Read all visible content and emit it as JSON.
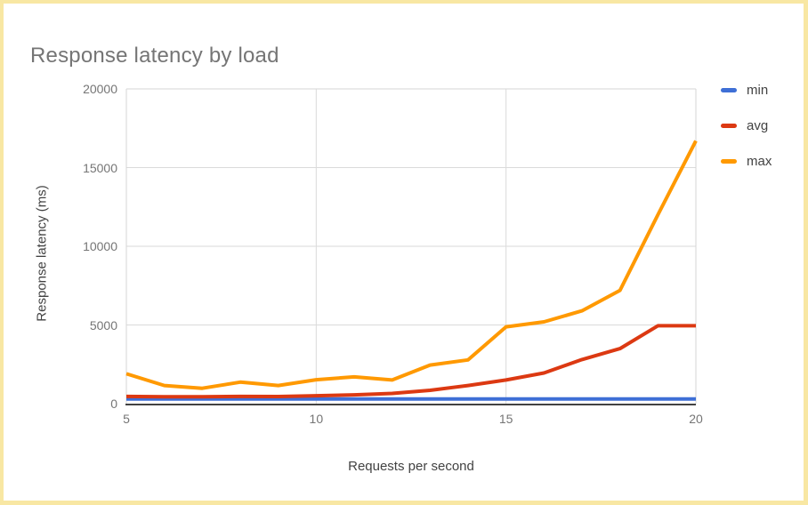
{
  "page": {
    "border_color": "#f8e7a3",
    "background": "#ffffff"
  },
  "chart_data": {
    "type": "line",
    "title": "Response latency by load",
    "xlabel": "Requests per second",
    "ylabel": "Response latency (ms)",
    "x": [
      5,
      6,
      7,
      8,
      9,
      10,
      11,
      12,
      13,
      14,
      15,
      16,
      17,
      18,
      19,
      20
    ],
    "series": [
      {
        "name": "min",
        "color": "#3e6fd6",
        "values": [
          300,
          300,
          300,
          300,
          300,
          300,
          300,
          300,
          300,
          300,
          300,
          300,
          300,
          300,
          300,
          300
        ]
      },
      {
        "name": "avg",
        "color": "#dc3912",
        "values": [
          460,
          440,
          440,
          460,
          450,
          500,
          560,
          650,
          850,
          1150,
          1500,
          1950,
          2800,
          3500,
          4950,
          4950
        ]
      },
      {
        "name": "max",
        "color": "#ff9900",
        "values": [
          1900,
          1150,
          980,
          1370,
          1150,
          1520,
          1700,
          1500,
          2450,
          2780,
          4880,
          5200,
          5900,
          7200,
          12000,
          16700
        ]
      }
    ],
    "xlim": [
      5,
      20
    ],
    "ylim": [
      0,
      20000
    ],
    "x_ticks": [
      5,
      10,
      15,
      20
    ],
    "y_ticks": [
      0,
      5000,
      10000,
      15000,
      20000
    ],
    "x_gridlines": [
      10,
      15
    ],
    "grid": true,
    "legend_position": "right",
    "colors": {
      "gridline": "#dadada",
      "plot_frame": "#d6d6d6",
      "axis_line": "#424242",
      "tick_label": "#757575",
      "axis_title": "#424242",
      "title": "#757575"
    }
  }
}
